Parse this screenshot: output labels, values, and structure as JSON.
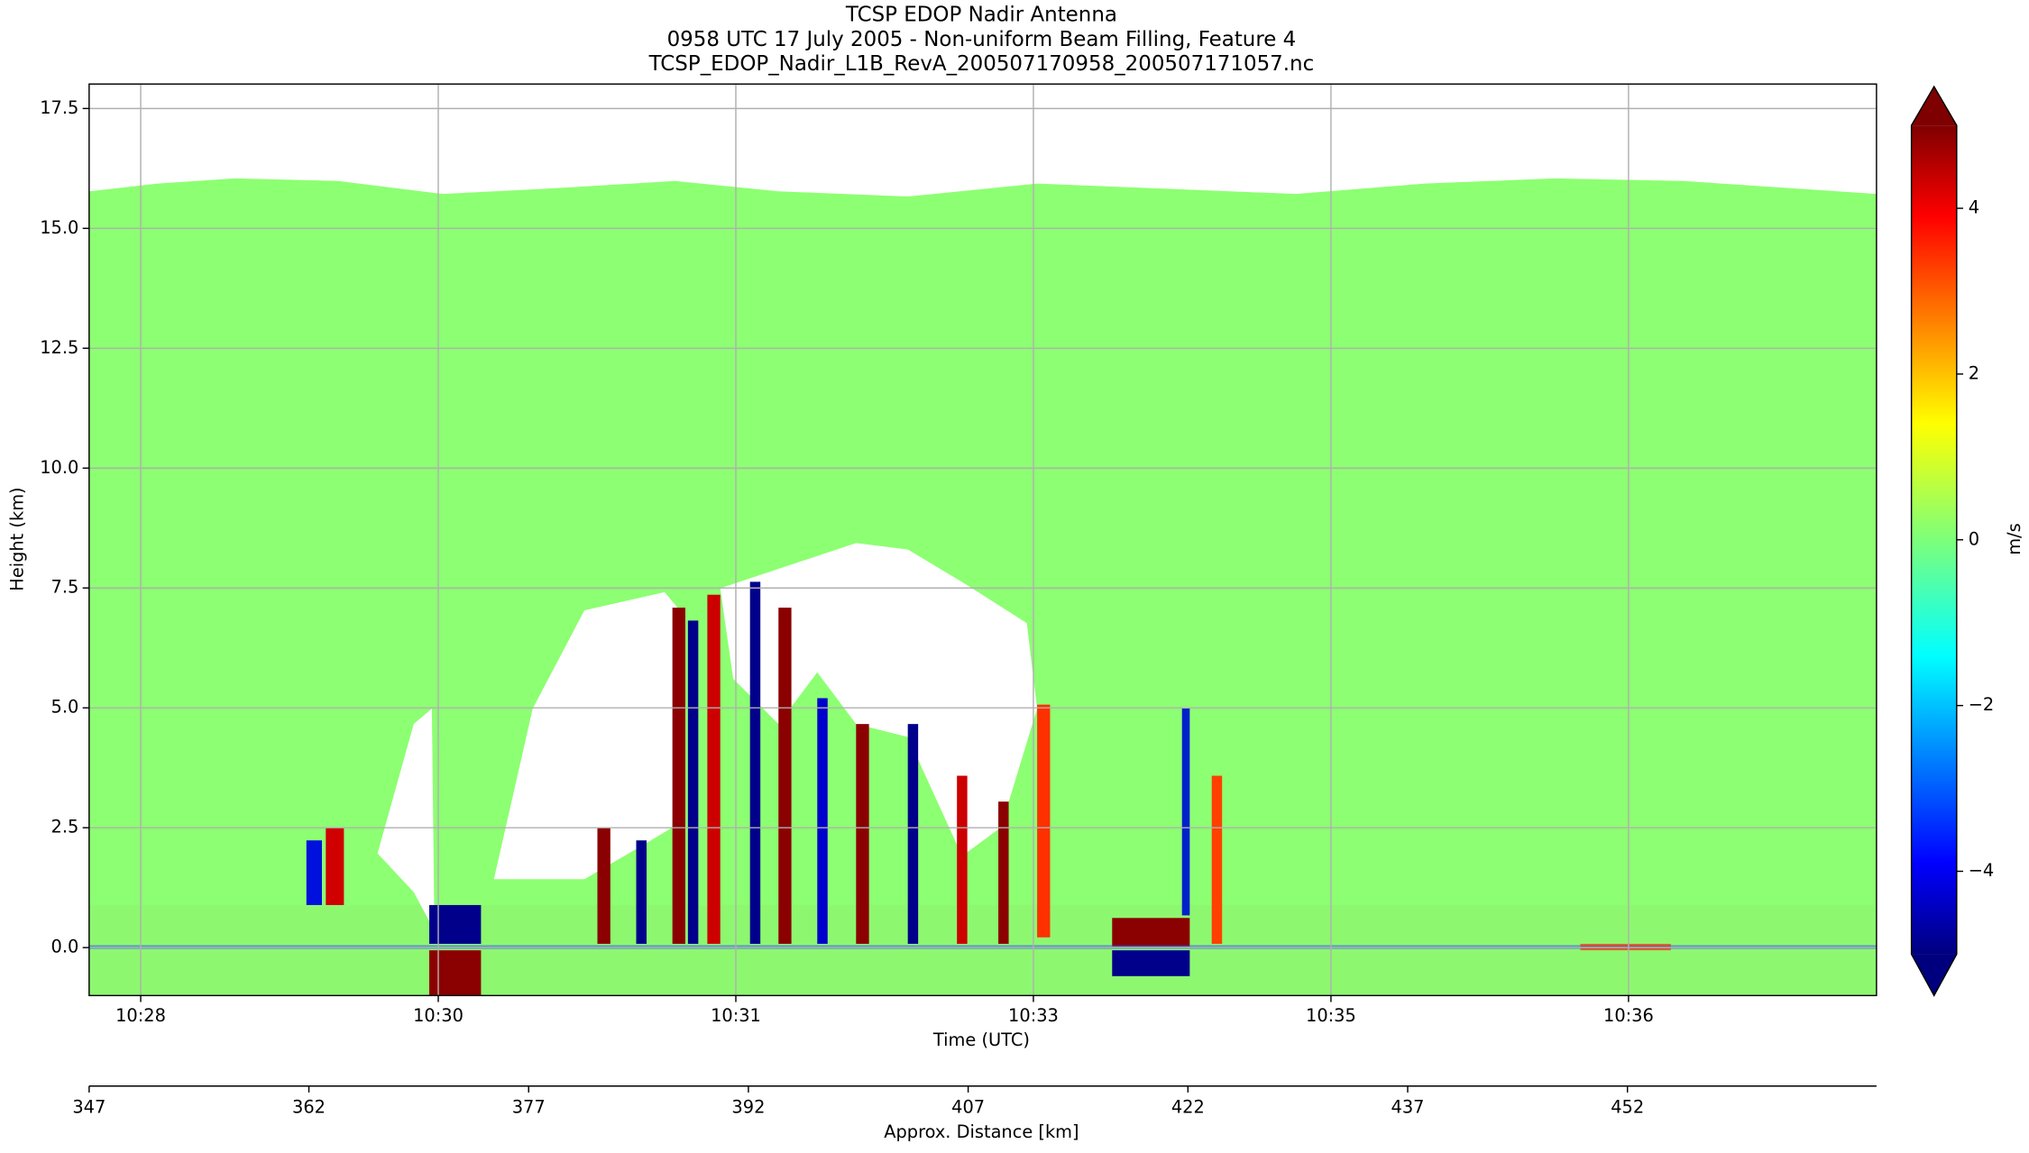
{
  "chart_data": {
    "type": "heatmap",
    "title": "TCSP EDOP Nadir Antenna",
    "subtitle": "0958 UTC 17 July 2005 - Non-uniform Beam Filling, Feature 4",
    "file_name": "TCSP_EDOP_Nadir_L1B_RevA_200507170958_200507171057.nc",
    "x_label": "Time (UTC)",
    "y_label": "Height (km)",
    "x2_label": "Approx. Distance [km]",
    "colorbar_label": "m/s",
    "colormap": "jet",
    "grid": true,
    "xlim": [
      28.14,
      37.15
    ],
    "xticks": [
      {
        "value": 28.4,
        "label": "10:28"
      },
      {
        "value": 29.9,
        "label": "10:30"
      },
      {
        "value": 31.4,
        "label": "10:31"
      },
      {
        "value": 32.9,
        "label": "10:33"
      },
      {
        "value": 34.4,
        "label": "10:35"
      },
      {
        "value": 35.9,
        "label": "10:36"
      }
    ],
    "ylim": [
      -1.0,
      18.01
    ],
    "yticks": [
      {
        "value": 0,
        "label": "0.0"
      },
      {
        "value": 2.5,
        "label": "2.5"
      },
      {
        "value": 5,
        "label": "5.0"
      },
      {
        "value": 7.5,
        "label": "7.5"
      },
      {
        "value": 10,
        "label": "10.0"
      },
      {
        "value": 12.5,
        "label": "12.5"
      },
      {
        "value": 15,
        "label": "15.0"
      },
      {
        "value": 17.5,
        "label": "17.5"
      }
    ],
    "x2lim": [
      347,
      469
    ],
    "x2ticks": [
      347,
      362,
      377,
      392,
      407,
      422,
      437,
      452
    ],
    "clim": [
      -5,
      5
    ],
    "cticks": [
      {
        "value": -4,
        "label": "−4"
      },
      {
        "value": -2,
        "label": "−2"
      },
      0,
      2,
      4
    ]
  }
}
